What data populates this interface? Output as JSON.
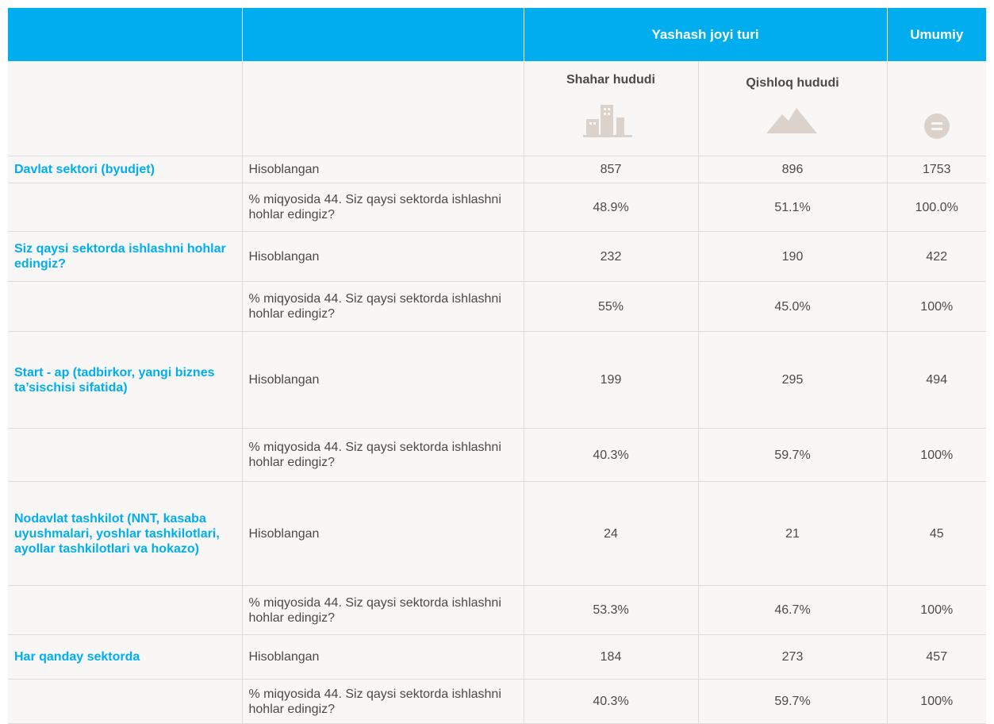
{
  "header": {
    "group_title": "Yashash joyi turi",
    "total_title": "Umumiy",
    "columns": [
      "Shahar hududi",
      "Qishloq hududi"
    ]
  },
  "groups": [
    {
      "label": "Davlat sektori (byudjet)",
      "rows": [
        {
          "measure": "Hisoblangan",
          "values": [
            "857",
            "896",
            "1753"
          ]
        },
        {
          "measure": "% miqyosida 44. Siz qaysi sektorda ishlashni hohlar edingiz?",
          "values": [
            "48.9%",
            "51.1%",
            "100.0%"
          ]
        }
      ]
    },
    {
      "label": "Siz qaysi sektorda ishlashni hohlar edingiz?",
      "rows": [
        {
          "measure": "Hisoblangan",
          "values": [
            "232",
            "190",
            "422"
          ]
        },
        {
          "measure": "% miqyosida 44. Siz qaysi sektorda ishlashni hohlar edingiz?",
          "values": [
            "55%",
            "45.0%",
            "100%"
          ]
        }
      ]
    },
    {
      "label": "Start - ap (tadbirkor, yangi biznes ta’sischisi sifatida)",
      "rows": [
        {
          "measure": "Hisoblangan",
          "values": [
            "199",
            "295",
            "494"
          ]
        },
        {
          "measure": "% miqyosida 44. Siz qaysi sektorda ishlashni hohlar edingiz?",
          "values": [
            "40.3%",
            "59.7%",
            "100%"
          ]
        }
      ]
    },
    {
      "label": "Nodavlat tashkilot (NNT, kasaba uyushmalari, yoshlar tashkilotlari, ayollar tashkilotlari va hokazo)",
      "rows": [
        {
          "measure": "Hisoblangan",
          "values": [
            "24",
            "21",
            "45"
          ]
        },
        {
          "measure": "% miqyosida 44. Siz qaysi sektorda ishlashni hohlar edingiz?",
          "values": [
            "53.3%",
            "46.7%",
            "100%"
          ]
        }
      ]
    },
    {
      "label": "Har qanday sektorda",
      "rows": [
        {
          "measure": "Hisoblangan",
          "values": [
            "184",
            "273",
            "457"
          ]
        },
        {
          "measure": "% miqyosida 44. Siz qaysi sektorda ishlashni hohlar edingiz?",
          "values": [
            "40.3%",
            "59.7%",
            "100%"
          ]
        }
      ]
    }
  ]
}
